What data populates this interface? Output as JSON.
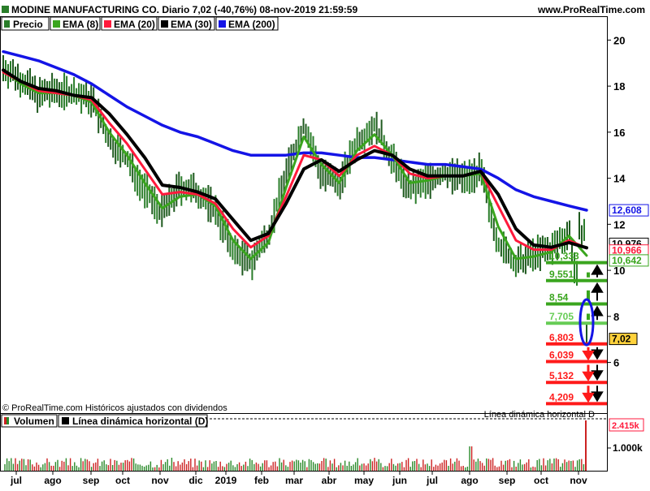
{
  "header": {
    "title": "MODINE MANUFACTURING CO. Diario 7,02 (-40,76%) 08-nov-2019 21:59:59",
    "site": "www.ProRealTime.com"
  },
  "legend": [
    {
      "label": "Precio",
      "color": "#2a7d2a",
      "icon": "candle-icon"
    },
    {
      "label": "EMA (8)",
      "color": "#3aa51e"
    },
    {
      "label": "EMA (20)",
      "color": "#ff1a3c"
    },
    {
      "label": "EMA (30)",
      "color": "#000000"
    },
    {
      "label": "EMA (200)",
      "color": "#1414e6"
    }
  ],
  "footer_note": "© ProRealTime.com Históricos ajustados con dividendos",
  "volume_panel": {
    "legend": [
      {
        "label": "Volumen",
        "icon": "volume-icon"
      },
      {
        "label": "Línea dinámica horizontal (D)",
        "color": "#000000"
      }
    ],
    "dashed_label": "Línea dinámica horizontal D",
    "last_volume_label": "2.415k",
    "ticks": [
      "1.000k"
    ]
  },
  "right_axis": {
    "ticks": [
      "20",
      "18",
      "16",
      "14",
      "12",
      "10",
      "8",
      "6"
    ],
    "markers": [
      {
        "value": 12.608,
        "label": "12,608",
        "color": "#1414e6",
        "fill": "#ffffff"
      },
      {
        "value": 10.976,
        "label": "10,976",
        "color": "#000000",
        "fill": "#ffffff"
      },
      {
        "value": 10.966,
        "label": "10,966",
        "color": "#ff1a3c",
        "fill": "#ffffff"
      },
      {
        "value": 10.642,
        "label": "10,642",
        "color": "#3aa51e",
        "fill": "#ffffff"
      },
      {
        "value": 7.02,
        "label": "7,02",
        "color": "#000000",
        "fill": "#ffd23c"
      }
    ]
  },
  "levels": [
    {
      "value": 10.333,
      "label": "10,333",
      "color": "#3aa51e"
    },
    {
      "value": 9.551,
      "label": "9,551",
      "color": "#3aa51e"
    },
    {
      "value": 8.54,
      "label": "8,54",
      "color": "#3aa51e"
    },
    {
      "value": 7.705,
      "label": "7,705",
      "color": "#66cc55"
    },
    {
      "value": 6.803,
      "label": "6,803",
      "color": "#ff1a1a"
    },
    {
      "value": 6.039,
      "label": "6,039",
      "color": "#ff1a1a"
    },
    {
      "value": 5.132,
      "label": "5,132",
      "color": "#ff1a1a"
    },
    {
      "value": 4.209,
      "label": "4,209",
      "color": "#ff1a1a"
    }
  ],
  "chart_data": {
    "type": "line",
    "title": "MODINE MANUFACTURING CO. Diario 7,02 (-40,76%) 08-nov-2019 21:59:59",
    "x_ticks": [
      "jul",
      "ago",
      "sep",
      "oct",
      "nov",
      "dic",
      "2019",
      "feb",
      "mar",
      "abr",
      "may",
      "jun",
      "jul",
      "ago",
      "sep",
      "oct",
      "nov"
    ],
    "ylim": [
      3.8,
      21.0
    ],
    "grid": false,
    "legend_position": "top-left",
    "series": [
      {
        "name": "Precio",
        "color": "#2a7d2a",
        "values": [
          18.8,
          18.3,
          17.6,
          17.8,
          17.7,
          17.4,
          15.6,
          14.8,
          13.5,
          12.5,
          13.6,
          13.4,
          12.6,
          10.9,
          10.3,
          11.6,
          14.2,
          16.3,
          14.2,
          13.7,
          15.6,
          16.3,
          14.8,
          13.5,
          13.9,
          14.2,
          14.0,
          14.3,
          11.2,
          10.2,
          10.7,
          10.9,
          11.7,
          7.02
        ]
      },
      {
        "name": "EMA (8)",
        "color": "#3aa51e",
        "values": [
          18.7,
          18.1,
          17.7,
          17.7,
          17.6,
          17.3,
          16.0,
          15.0,
          13.8,
          12.7,
          13.2,
          13.3,
          12.8,
          11.3,
          10.5,
          11.2,
          13.6,
          15.8,
          14.6,
          13.8,
          15.2,
          15.9,
          15.0,
          13.8,
          13.9,
          14.1,
          14.1,
          14.2,
          11.9,
          10.5,
          10.6,
          10.8,
          11.5,
          10.64
        ]
      },
      {
        "name": "EMA (20)",
        "color": "#ff1a3c",
        "values": [
          18.6,
          18.2,
          17.8,
          17.7,
          17.6,
          17.4,
          16.4,
          15.5,
          14.4,
          13.3,
          13.4,
          13.3,
          12.9,
          11.8,
          11.0,
          11.5,
          13.2,
          15.0,
          14.8,
          14.1,
          15.0,
          15.4,
          15.0,
          14.2,
          14.0,
          14.1,
          14.1,
          14.3,
          12.8,
          11.3,
          10.9,
          10.9,
          11.3,
          10.97
        ]
      },
      {
        "name": "EMA (30)",
        "color": "#000000",
        "values": [
          18.7,
          18.2,
          17.9,
          17.8,
          17.6,
          17.5,
          16.8,
          15.9,
          14.9,
          13.7,
          13.6,
          13.4,
          13.1,
          12.2,
          11.3,
          11.6,
          12.9,
          14.4,
          14.8,
          14.3,
          14.8,
          15.2,
          15.0,
          14.4,
          14.1,
          14.1,
          14.1,
          14.3,
          13.3,
          11.8,
          11.1,
          11.0,
          11.2,
          10.98
        ]
      },
      {
        "name": "EMA (200)",
        "color": "#1414e6",
        "values": [
          19.5,
          19.3,
          19.1,
          18.8,
          18.5,
          18.1,
          17.6,
          17.1,
          16.7,
          16.3,
          16.0,
          15.8,
          15.5,
          15.2,
          15.0,
          15.0,
          15.0,
          15.1,
          15.1,
          15.0,
          14.9,
          14.9,
          14.8,
          14.7,
          14.6,
          14.6,
          14.5,
          14.4,
          14.0,
          13.5,
          13.2,
          13.0,
          12.8,
          12.61
        ]
      }
    ]
  }
}
